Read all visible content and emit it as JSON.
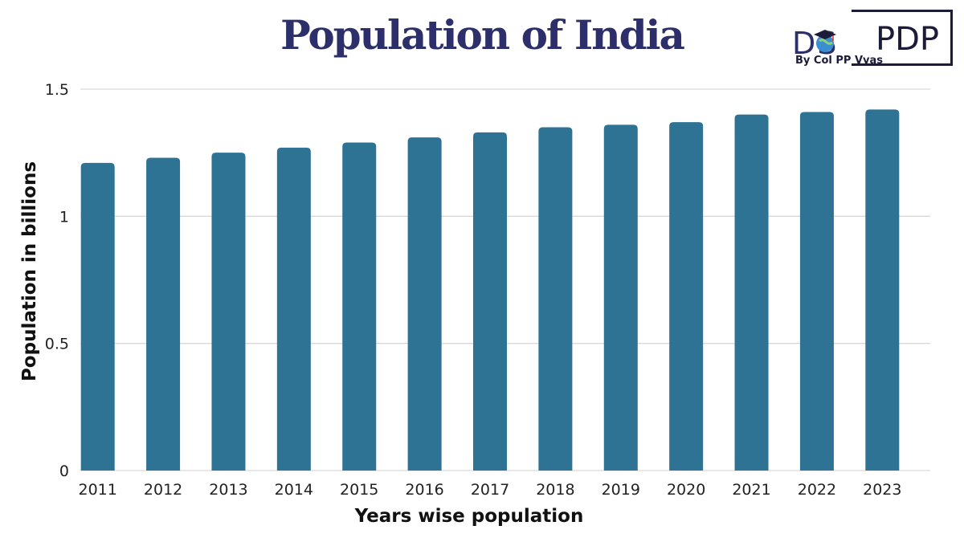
{
  "chart_data": {
    "type": "bar",
    "title": "Population of India",
    "xlabel": "Years wise population",
    "ylabel": "Population in billions",
    "categories": [
      "2011",
      "2012",
      "2013",
      "2014",
      "2015",
      "2016",
      "2017",
      "2018",
      "2019",
      "2020",
      "2021",
      "2022",
      "2023"
    ],
    "values": [
      1.21,
      1.23,
      1.25,
      1.27,
      1.29,
      1.31,
      1.33,
      1.35,
      1.36,
      1.37,
      1.4,
      1.41,
      1.42
    ],
    "ylim": [
      0,
      1.5
    ],
    "yticks": [
      0,
      0.5,
      1,
      1.5
    ],
    "ytick_labels": [
      "0",
      "0.5",
      "1",
      "1.5"
    ],
    "grid": true,
    "bar_color": "#2e7294",
    "grid_color": "#d9d9d9"
  },
  "logo": {
    "brand_left": "DS",
    "brand_right": "PDP",
    "byline": "By Col PP Vyas"
  },
  "colors": {
    "title": "#2d2f6b",
    "logo_dark": "#1c1c3a",
    "logo_accent": "#3a8fd0"
  }
}
